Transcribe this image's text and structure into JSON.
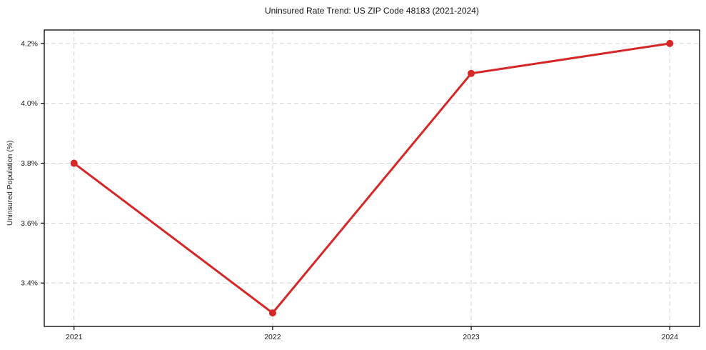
{
  "chart_data": {
    "type": "line",
    "title": "Uninsured Rate Trend: US ZIP Code 48183 (2021-2024)",
    "xlabel": "",
    "ylabel": "Uninsured Population (%)",
    "categories": [
      "2021",
      "2022",
      "2023",
      "2024"
    ],
    "x": [
      2021,
      2022,
      2023,
      2024
    ],
    "values": [
      3.8,
      3.3,
      4.1,
      4.2
    ],
    "yticks": [
      3.4,
      3.6,
      3.8,
      4.0,
      4.2
    ],
    "ytick_labels": [
      "3.4%",
      "3.6%",
      "3.8%",
      "4.0%",
      "4.2%"
    ],
    "ylim": [
      3.255,
      4.245
    ],
    "xlim": [
      2020.85,
      2024.15
    ],
    "grid": true,
    "grid_style": "dashed",
    "legend_position": "none",
    "colors": {
      "line": "#d62728",
      "marker": "#d62728",
      "grid": "#d2d2d2",
      "spine": "#000000",
      "text": "#1a1a1a",
      "background": "#ffffff"
    }
  }
}
